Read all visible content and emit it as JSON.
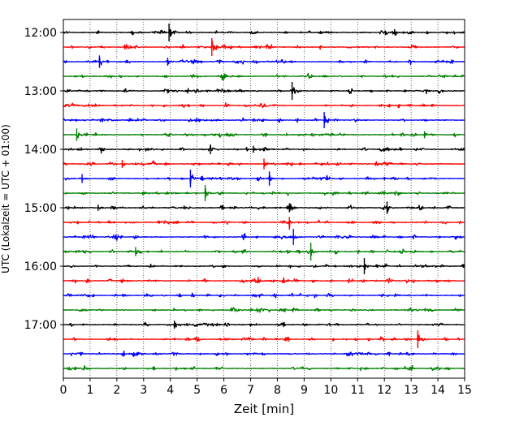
{
  "chart_data": {
    "type": "line",
    "title": "",
    "xlabel": "Zeit  [min]",
    "ylabel": "UTC (Lokalzeit = UTC + 01:00)",
    "xlim": [
      0,
      15
    ],
    "x_ticks": [
      "0",
      "1",
      "2",
      "3",
      "4",
      "5",
      "6",
      "7",
      "8",
      "9",
      "10",
      "11",
      "12",
      "13",
      "14",
      "15"
    ],
    "y_ticks": [
      "12:00",
      "13:00",
      "14:00",
      "15:00",
      "16:00",
      "17:00"
    ],
    "grid": "vertical dotted lines at each minute",
    "colors": [
      "#000000",
      "#ff0000",
      "#0000ff",
      "#008000"
    ],
    "trace_interval_min": 15,
    "first_trace": "12:00",
    "trace_count": 24,
    "events": [
      {
        "trace": 0,
        "minute": 3.95,
        "amp": 1.0
      },
      {
        "trace": 1,
        "minute": 5.55,
        "amp": 1.0
      },
      {
        "trace": 2,
        "minute": 1.35,
        "amp": 0.7
      },
      {
        "trace": 2,
        "minute": 3.9,
        "amp": 0.45
      },
      {
        "trace": 4,
        "minute": 8.55,
        "amp": 1.0
      },
      {
        "trace": 6,
        "minute": 9.75,
        "amp": 0.9
      },
      {
        "trace": 7,
        "minute": 0.5,
        "amp": 0.7
      },
      {
        "trace": 7,
        "minute": 13.5,
        "amp": 0.4
      },
      {
        "trace": 8,
        "minute": 5.5,
        "amp": 0.55
      },
      {
        "trace": 8,
        "minute": 7.1,
        "amp": 0.4
      },
      {
        "trace": 9,
        "minute": 2.2,
        "amp": 0.45
      },
      {
        "trace": 9,
        "minute": 7.5,
        "amp": 0.6
      },
      {
        "trace": 10,
        "minute": 0.7,
        "amp": 0.5
      },
      {
        "trace": 10,
        "minute": 4.75,
        "amp": 1.0
      },
      {
        "trace": 10,
        "minute": 7.7,
        "amp": 0.8
      },
      {
        "trace": 11,
        "minute": 5.3,
        "amp": 0.9
      },
      {
        "trace": 12,
        "minute": 1.3,
        "amp": 0.35
      },
      {
        "trace": 12,
        "minute": 8.45,
        "amp": 0.5
      },
      {
        "trace": 12,
        "minute": 12.1,
        "amp": 0.7
      },
      {
        "trace": 13,
        "minute": 8.45,
        "amp": 0.6
      },
      {
        "trace": 14,
        "minute": 8.6,
        "amp": 0.9
      },
      {
        "trace": 15,
        "minute": 2.7,
        "amp": 0.5
      },
      {
        "trace": 15,
        "minute": 9.25,
        "amp": 1.0
      },
      {
        "trace": 16,
        "minute": 11.25,
        "amp": 0.9
      },
      {
        "trace": 20,
        "minute": 4.15,
        "amp": 0.45
      },
      {
        "trace": 21,
        "minute": 13.25,
        "amp": 1.0
      }
    ]
  }
}
